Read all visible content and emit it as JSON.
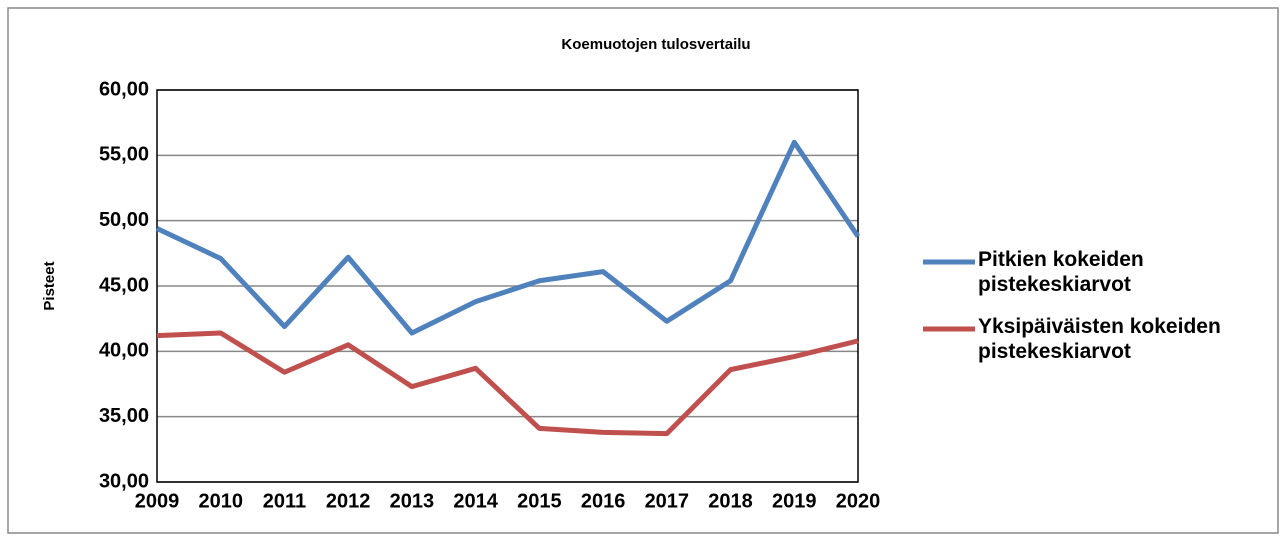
{
  "chart_data": {
    "type": "line",
    "title": "Koemuotojen tulosvertailu",
    "ylabel": "Pisteet",
    "x": [
      2009,
      2010,
      2011,
      2012,
      2013,
      2014,
      2015,
      2016,
      2017,
      2018,
      2019,
      2020
    ],
    "xlim": [
      2009,
      2020
    ],
    "series": [
      {
        "name": "Pitkien kokeiden pistekeskiarvot",
        "color": "#4f81bd",
        "values": [
          49.4,
          47.1,
          41.9,
          47.2,
          41.4,
          43.8,
          45.4,
          46.1,
          42.3,
          45.4,
          56.0,
          48.8
        ]
      },
      {
        "name": "Yksipäiväisten kokeiden pistekeskiarvot",
        "color": "#c0504d",
        "values": [
          41.2,
          41.4,
          38.4,
          40.5,
          37.3,
          38.7,
          34.1,
          33.8,
          33.7,
          38.6,
          39.6,
          40.8
        ]
      }
    ],
    "ylim": [
      30,
      60
    ],
    "yticks": [
      {
        "value": 30,
        "label": "30,00"
      },
      {
        "value": 35,
        "label": "35,00"
      },
      {
        "value": 40,
        "label": "40,00"
      },
      {
        "value": 45,
        "label": "45,00"
      },
      {
        "value": 50,
        "label": "50,00"
      },
      {
        "value": 55,
        "label": "55,00"
      },
      {
        "value": 60,
        "label": "60,00"
      }
    ],
    "grid": true,
    "legend": "right"
  }
}
